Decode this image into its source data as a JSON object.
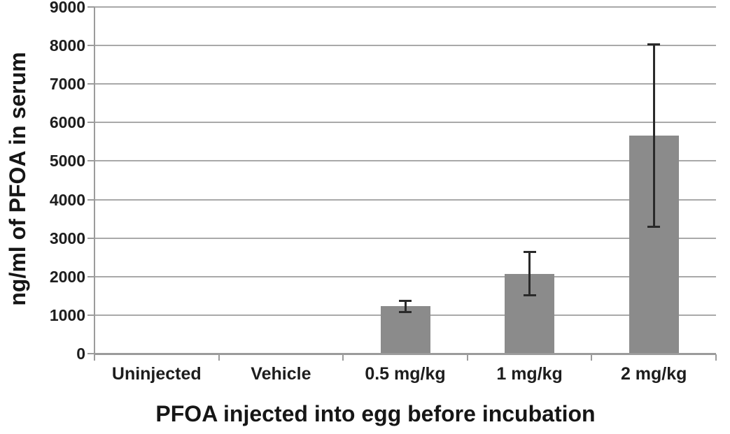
{
  "chart_data": {
    "type": "bar",
    "xlabel": "PFOA injected into egg before incubation",
    "ylabel": "ng/ml of PFOA in serum",
    "categories": [
      "Uninjected",
      "Vehicle",
      "0.5 mg/kg",
      "1 mg/kg",
      "2 mg/kg"
    ],
    "values": [
      0,
      0,
      1230,
      2070,
      5660
    ],
    "error_bars": [
      0,
      0,
      175,
      590,
      2395
    ],
    "ylim": [
      0,
      9000
    ],
    "yticks": [
      0,
      1000,
      2000,
      3000,
      4000,
      5000,
      6000,
      7000,
      8000,
      9000
    ],
    "grid": "horizontal",
    "legend": "none",
    "colors": {
      "bar": "#8b8b8b",
      "gridline": "#a9a9a9",
      "axis": "#9b9b9b",
      "error_bar": "#2a2a2a",
      "text": "#1d1d1d"
    }
  }
}
